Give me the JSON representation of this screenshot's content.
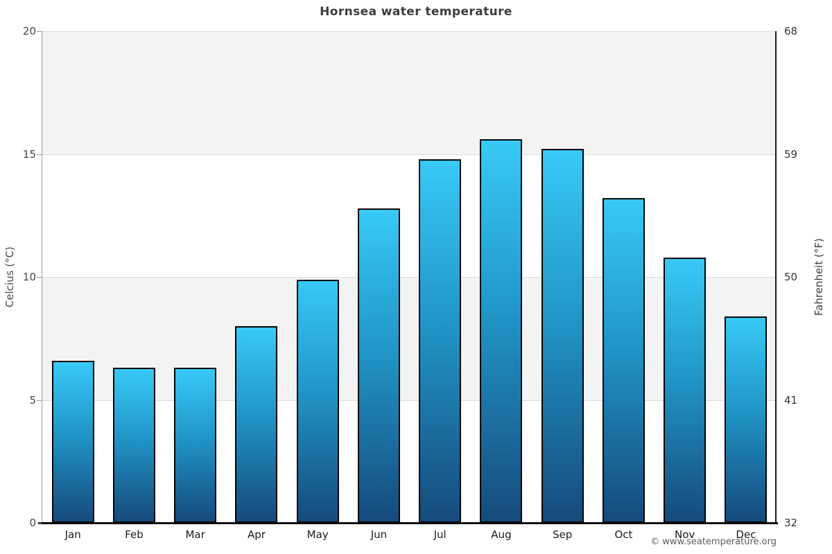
{
  "page": {
    "copyright": "© www.seatemperature.org"
  },
  "chart_data": {
    "type": "bar",
    "title": "Hornsea water temperature",
    "categories": [
      "Jan",
      "Feb",
      "Mar",
      "Apr",
      "May",
      "Jun",
      "Jul",
      "Aug",
      "Sep",
      "Oct",
      "Nov",
      "Dec"
    ],
    "values": [
      6.6,
      6.3,
      6.3,
      8.0,
      9.9,
      12.8,
      14.8,
      15.6,
      15.2,
      13.2,
      10.8,
      8.4
    ],
    "series": [
      {
        "name": "Water temperature",
        "values": [
          6.6,
          6.3,
          6.3,
          8.0,
          9.9,
          12.8,
          14.8,
          15.6,
          15.2,
          13.2,
          10.8,
          8.4
        ]
      }
    ],
    "xlabel": "",
    "ylabel": "Celcius (°C)",
    "ylabel_right": "Fahrenheit (°F)",
    "ylim": [
      0,
      20
    ],
    "yticks_celsius": [
      0,
      5,
      10,
      15,
      20
    ],
    "yticks_fahrenheit": [
      32,
      41,
      50,
      59,
      68
    ],
    "legend": "none",
    "grid": "horizontal alternating bands, gridlines at 5C intervals",
    "colors": {
      "bar_gradient_top": "#38c9f6",
      "bar_gradient_mid": "#2196c8",
      "bar_gradient_bottom": "#164a7c",
      "bar_border": "#050505",
      "band_fill": "#f3f3f3",
      "gridline": "#dcdcdc"
    }
  }
}
